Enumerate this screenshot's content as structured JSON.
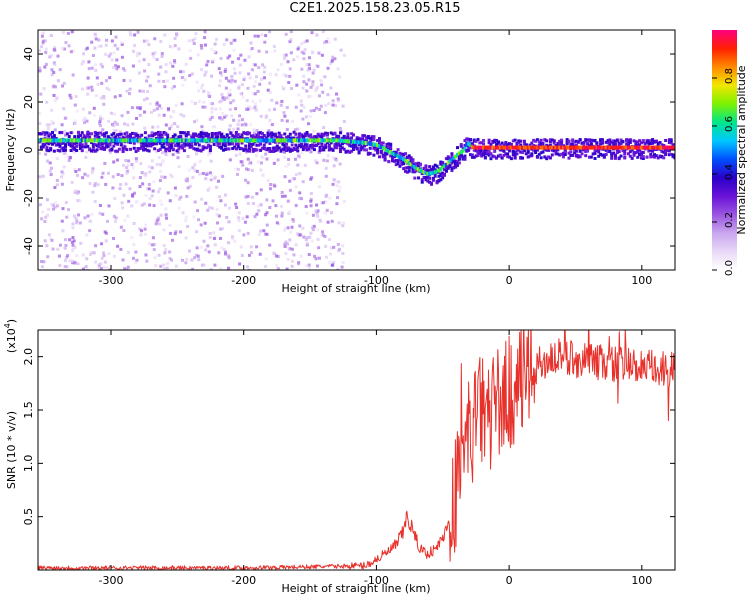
{
  "title": "C2E1.2025.158.23.05.R15",
  "colors": {
    "snr_line": "#e8312b",
    "frame": "#000000",
    "colormap": [
      "#ffffff",
      "#e9d8f7",
      "#c9a6ef",
      "#9a55e0",
      "#6a12d8",
      "#2a00c8",
      "#0050ff",
      "#00c8ff",
      "#00e68a",
      "#7cf200",
      "#f2e600",
      "#ff8a00",
      "#ff2000",
      "#ff0080"
    ]
  },
  "chart_data": [
    {
      "type": "heatmap",
      "title": "",
      "xlabel": "Height of straight line (km)",
      "ylabel": "Frequency (Hz)",
      "xlim": [
        -355,
        125
      ],
      "ylim": [
        -50,
        50
      ],
      "xticks": [
        -300,
        -200,
        -100,
        0,
        100
      ],
      "yticks": [
        -40,
        -20,
        0,
        20,
        40
      ],
      "grid": false,
      "colorbar": {
        "label": "Normalized spectral amplitude",
        "range": [
          0,
          1
        ],
        "ticks": [
          "0.0",
          "0.2",
          "0.4",
          "0.6",
          "0.8"
        ],
        "tick_values": [
          0.0,
          0.2,
          0.4,
          0.6,
          0.8
        ]
      },
      "ridge_x": [
        -355,
        -300,
        -250,
        -200,
        -150,
        -130,
        -110,
        -100,
        -90,
        -80,
        -70,
        -62,
        -55,
        -48,
        -40,
        -35,
        -32,
        -28,
        -20,
        0,
        20,
        50,
        80,
        100,
        125
      ],
      "ridge_y": [
        4,
        4,
        4,
        4,
        4,
        4,
        3,
        2,
        -1,
        -4,
        -8,
        -10,
        -9,
        -6,
        -2,
        0,
        3,
        1,
        1,
        1,
        1,
        1,
        1,
        1,
        1
      ],
      "scatter_x_extent": [
        -355,
        -125
      ]
    },
    {
      "type": "line",
      "title": "",
      "xlabel": "Height of straight line (km)",
      "ylabel": "SNR (10 * v/v)",
      "y_scale_label": "(x10",
      "y_scale_exp": "4",
      "y_scale_close": ")",
      "xlim": [
        -355,
        125
      ],
      "ylim": [
        0,
        2.25
      ],
      "xticks": [
        -300,
        -200,
        -100,
        0,
        100
      ],
      "yticks": [
        0.5,
        1.0,
        1.5,
        2.0
      ],
      "ytick_labels": [
        "0.5",
        "1.0",
        "1.5",
        "2.0"
      ],
      "grid": false,
      "series": [
        {
          "x": [
            -355,
            -200,
            -150,
            -110,
            -105,
            -100,
            -95,
            -90,
            -85,
            -80,
            -77,
            -75,
            -72,
            -68,
            -62,
            -55,
            -48,
            -42,
            -38,
            -34,
            -30,
            -25,
            -20,
            -15,
            -10,
            -5,
            0,
            5,
            10,
            20,
            30,
            40,
            50,
            60,
            70,
            80,
            90,
            100,
            110,
            120,
            125
          ],
          "y": [
            0.02,
            0.02,
            0.03,
            0.04,
            0.06,
            0.1,
            0.14,
            0.18,
            0.24,
            0.35,
            0.5,
            0.45,
            0.35,
            0.22,
            0.15,
            0.2,
            0.35,
            0.6,
            0.9,
            1.1,
            1.3,
            1.4,
            1.5,
            1.45,
            1.55,
            1.6,
            1.65,
            1.72,
            1.8,
            1.9,
            1.98,
            2.0,
            1.98,
            1.95,
            1.95,
            1.93,
            1.92,
            1.9,
            1.88,
            1.87,
            1.86
          ]
        }
      ]
    }
  ]
}
